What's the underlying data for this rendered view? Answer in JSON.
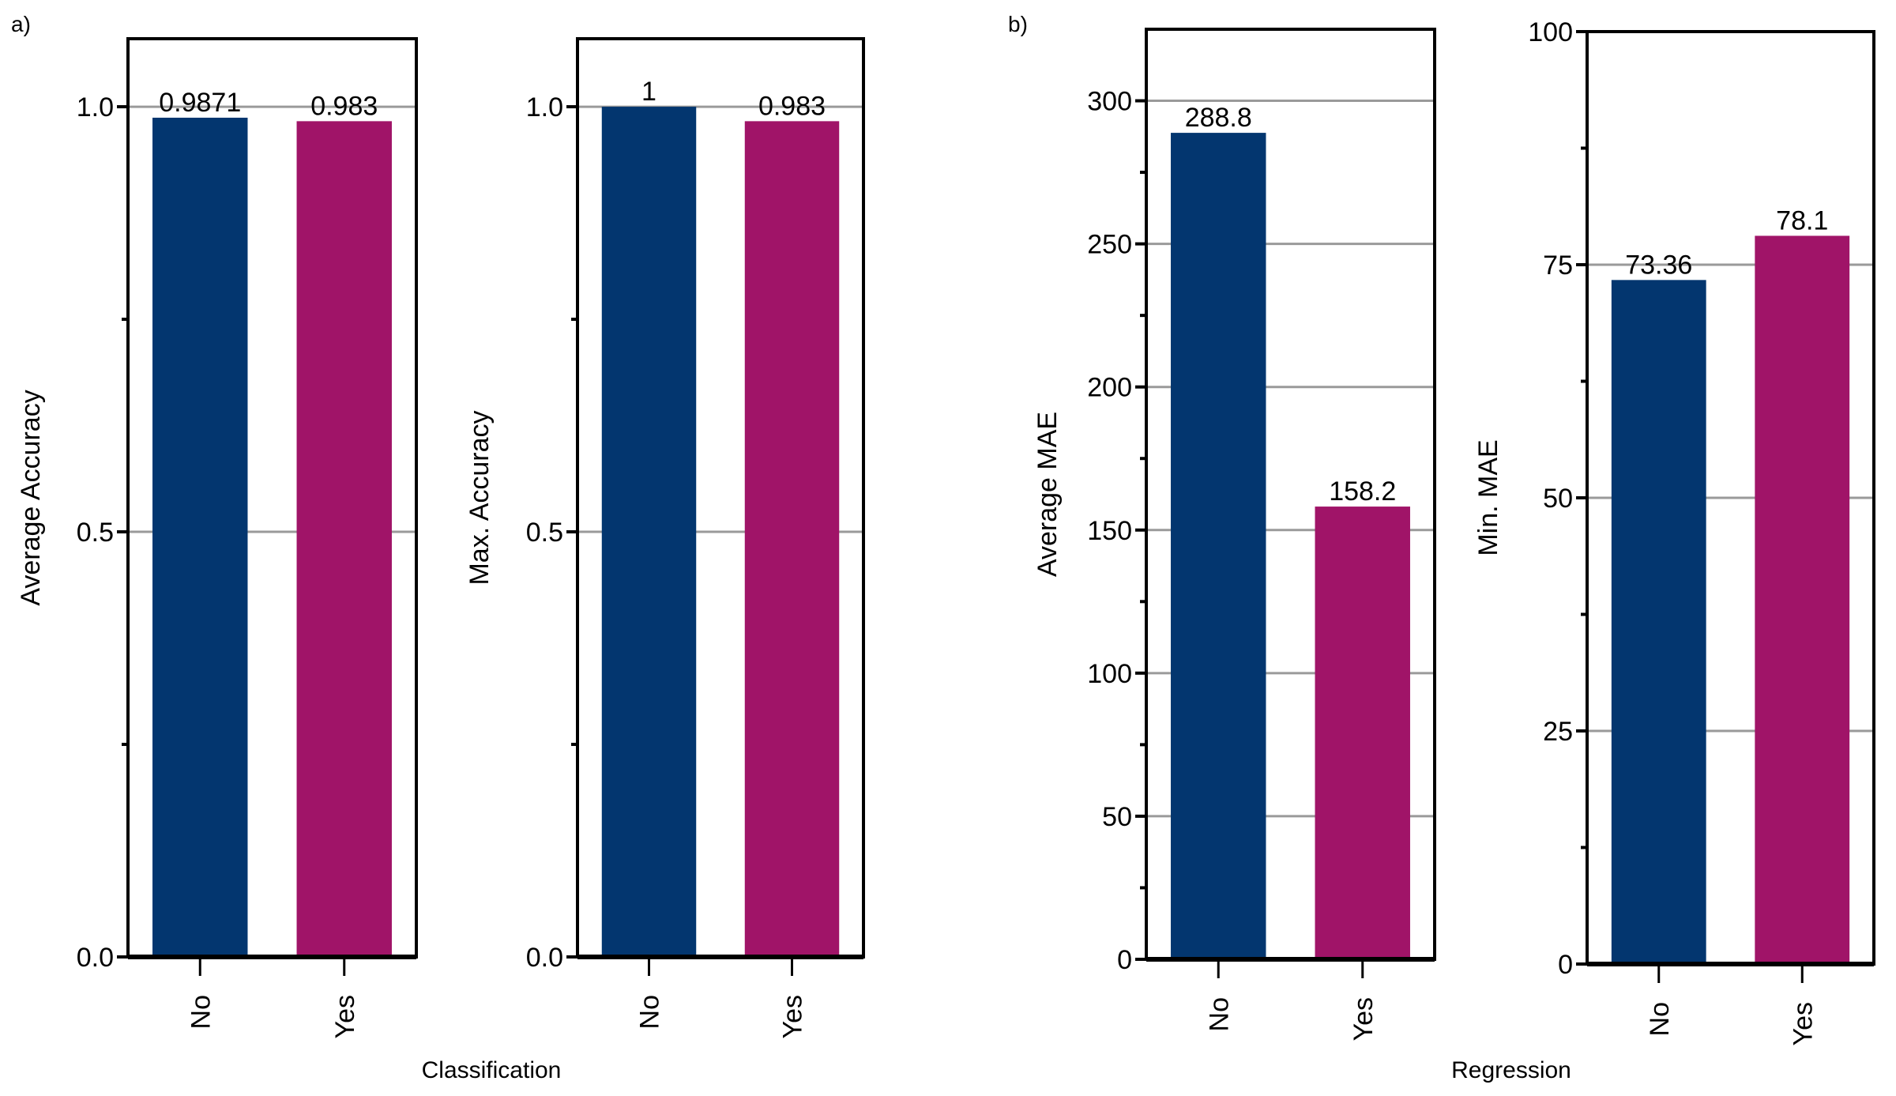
{
  "panels": [
    {
      "label": "a)",
      "group_title": "Classification"
    },
    {
      "label": "b)",
      "group_title": "Regression"
    }
  ],
  "colors": {
    "No": "#03366F",
    "Yes": "#A01468",
    "grid": "#9a9a9a",
    "frame": "#000000"
  },
  "chart_data": [
    {
      "type": "bar",
      "panel": "a)",
      "title": "",
      "xlabel": "",
      "ylabel": "Average Accuracy",
      "categories": [
        "No",
        "Yes"
      ],
      "values": [
        0.9871,
        0.983
      ],
      "data_labels": [
        "0.9871",
        "0.983"
      ],
      "ylim": [
        0,
        1.08
      ],
      "yticks": [
        0.0,
        0.5,
        1.0
      ],
      "ytick_labels": [
        "0.0",
        "0.5",
        "1.0"
      ],
      "minor_yticks": [
        0.25,
        0.75
      ],
      "grid": true
    },
    {
      "type": "bar",
      "panel": "a)",
      "title": "",
      "xlabel": "",
      "ylabel": "Max. Accuracy",
      "categories": [
        "No",
        "Yes"
      ],
      "values": [
        1.0,
        0.983
      ],
      "data_labels": [
        "1",
        "0.983"
      ],
      "ylim": [
        0,
        1.08
      ],
      "yticks": [
        0.0,
        0.5,
        1.0
      ],
      "ytick_labels": [
        "0.0",
        "0.5",
        "1.0"
      ],
      "minor_yticks": [
        0.25,
        0.75
      ],
      "grid": true
    },
    {
      "type": "bar",
      "panel": "b)",
      "title": "",
      "xlabel": "",
      "ylabel": "Average MAE",
      "categories": [
        "No",
        "Yes"
      ],
      "values": [
        288.8,
        158.2
      ],
      "data_labels": [
        "288.8",
        "158.2"
      ],
      "ylim": [
        0,
        325
      ],
      "yticks": [
        0,
        50,
        100,
        150,
        200,
        250,
        300
      ],
      "ytick_labels": [
        "0",
        "50",
        "100",
        "150",
        "200",
        "250",
        "300"
      ],
      "minor_yticks": [
        25,
        75,
        125,
        175,
        225,
        275
      ],
      "grid": true
    },
    {
      "type": "bar",
      "panel": "b)",
      "title": "",
      "xlabel": "",
      "ylabel": "Min. MAE",
      "categories": [
        "No",
        "Yes"
      ],
      "values": [
        73.36,
        78.1
      ],
      "data_labels": [
        "73.36",
        "78.1"
      ],
      "ylim": [
        0,
        100
      ],
      "yticks": [
        0,
        25,
        50,
        75,
        100
      ],
      "ytick_labels": [
        "0",
        "25",
        "50",
        "75",
        "100"
      ],
      "minor_yticks": [
        12.5,
        37.5,
        62.5,
        87.5
      ],
      "grid": true
    }
  ]
}
